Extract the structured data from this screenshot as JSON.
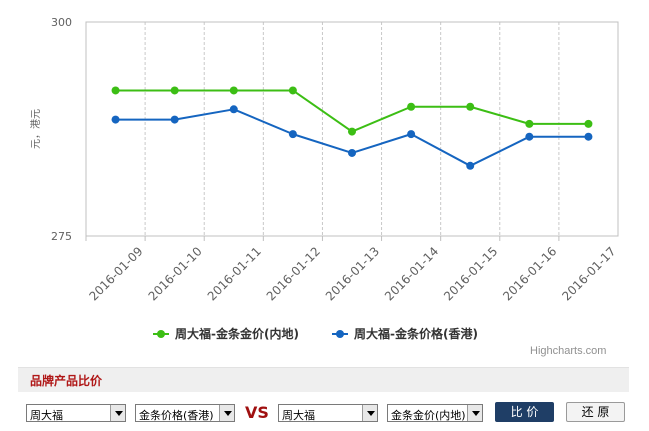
{
  "chart_data": {
    "type": "line",
    "title": "",
    "xlabel": "",
    "ylabel": "元，港元",
    "categories": [
      "2016-01-09",
      "2016-01-10",
      "2016-01-11",
      "2016-01-12",
      "2016-01-13",
      "2016-01-14",
      "2016-01-15",
      "2016-01-16",
      "2016-01-17"
    ],
    "ylim": [
      275,
      300
    ],
    "yticks": [
      "300",
      "275"
    ],
    "grid": true,
    "legend_position": "bottom",
    "series": [
      {
        "name": "周大福-金条金价(内地)",
        "color": "#3cbe14",
        "values": [
          292,
          292,
          292,
          292,
          287.2,
          290.1,
          290.1,
          288.1,
          288.1
        ]
      },
      {
        "name": "周大福-金条价格(香港)",
        "color": "#1565c0",
        "values": [
          288.6,
          288.6,
          289.8,
          286.9,
          284.7,
          286.9,
          283.2,
          286.6,
          286.6
        ]
      }
    ]
  },
  "credit": "Highcharts.com",
  "compare": {
    "title": "品牌产品比价",
    "brand1": "周大福",
    "product1": "金条价格(香港)",
    "vs": "VS",
    "brand2": "周大福",
    "product2": "金条金价(内地)",
    "compare_button": "比 价",
    "reset_button": "还 原"
  }
}
